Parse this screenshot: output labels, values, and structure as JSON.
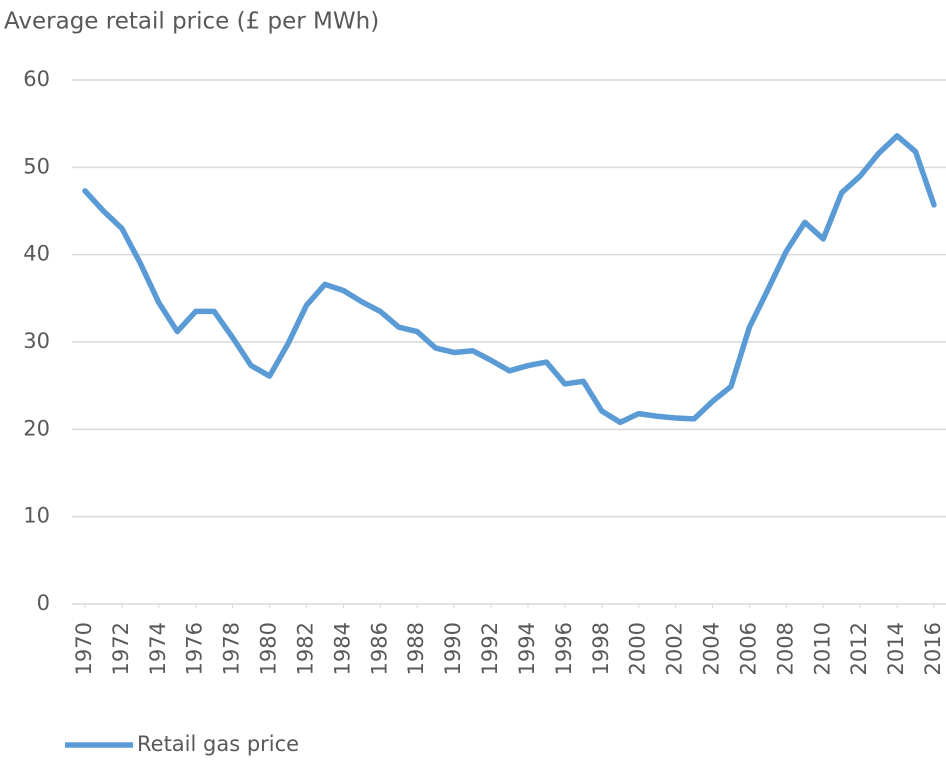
{
  "chart_data": {
    "type": "line",
    "title": "Average retail price (£ per MWh)",
    "x": [
      1970,
      1971,
      1972,
      1973,
      1974,
      1975,
      1976,
      1977,
      1978,
      1979,
      1980,
      1981,
      1982,
      1983,
      1984,
      1985,
      1986,
      1987,
      1988,
      1989,
      1990,
      1991,
      1992,
      1993,
      1994,
      1995,
      1996,
      1997,
      1998,
      1999,
      2000,
      2001,
      2002,
      2003,
      2004,
      2005,
      2006,
      2007,
      2008,
      2009,
      2010,
      2011,
      2012,
      2013,
      2014,
      2015,
      2016
    ],
    "series": [
      {
        "name": "Retail gas price",
        "color": "#5b9bd5",
        "values": [
          47.3,
          45,
          43,
          39,
          34.5,
          31.2,
          33.5,
          33.5,
          30.5,
          27.3,
          26.1,
          29.8,
          34.2,
          36.6,
          35.9,
          34.6,
          33.5,
          31.7,
          31.2,
          29.3,
          28.8,
          29.0,
          27.9,
          26.7,
          27.3,
          27.7,
          25.2,
          25.5,
          22.1,
          20.8,
          21.8,
          21.5,
          21.3,
          21.2,
          23.2,
          24.9,
          31.7,
          36,
          40.4,
          43.7,
          41.8,
          47.1,
          49,
          51.6,
          53.6,
          51.8,
          45.7
        ]
      }
    ],
    "xlim": [
      1970,
      2016
    ],
    "xticks": [
      1970,
      1972,
      1974,
      1976,
      1978,
      1980,
      1982,
      1984,
      1986,
      1988,
      1990,
      1992,
      1994,
      1996,
      1998,
      2000,
      2002,
      2004,
      2006,
      2008,
      2010,
      2012,
      2014,
      2016
    ],
    "ylim": [
      0,
      60
    ],
    "yticks": [
      0,
      10,
      20,
      30,
      40,
      50,
      60
    ],
    "grid": true,
    "legend": "bottom-left"
  }
}
